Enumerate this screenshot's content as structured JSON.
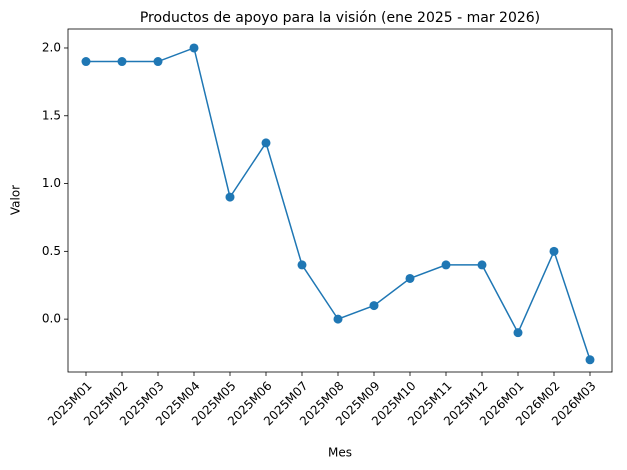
{
  "chart_data": {
    "type": "line",
    "title": "Productos de apoyo para la visión (ene 2025 - mar 2026)",
    "x_label": "Mes",
    "y_label": "Valor",
    "categories": [
      "2025M01",
      "2025M02",
      "2025M03",
      "2025M04",
      "2025M05",
      "2025M06",
      "2025M07",
      "2025M08",
      "2025M09",
      "2025M10",
      "2025M11",
      "2025M12",
      "2026M01",
      "2026M02",
      "2026M03"
    ],
    "values": [
      1.9,
      1.9,
      1.9,
      2.0,
      0.9,
      1.3,
      0.4,
      0.0,
      0.1,
      0.3,
      0.4,
      0.4,
      -0.1,
      0.5,
      -0.3
    ],
    "color": "#1f77b4",
    "ylim": [
      -0.39,
      2.14
    ],
    "yticks": [
      {
        "value": 0,
        "label": "0.0"
      },
      0.5,
      {
        "value": 1,
        "label": "1.0"
      },
      1.5,
      {
        "value": 2,
        "label": "2.0"
      }
    ]
  }
}
